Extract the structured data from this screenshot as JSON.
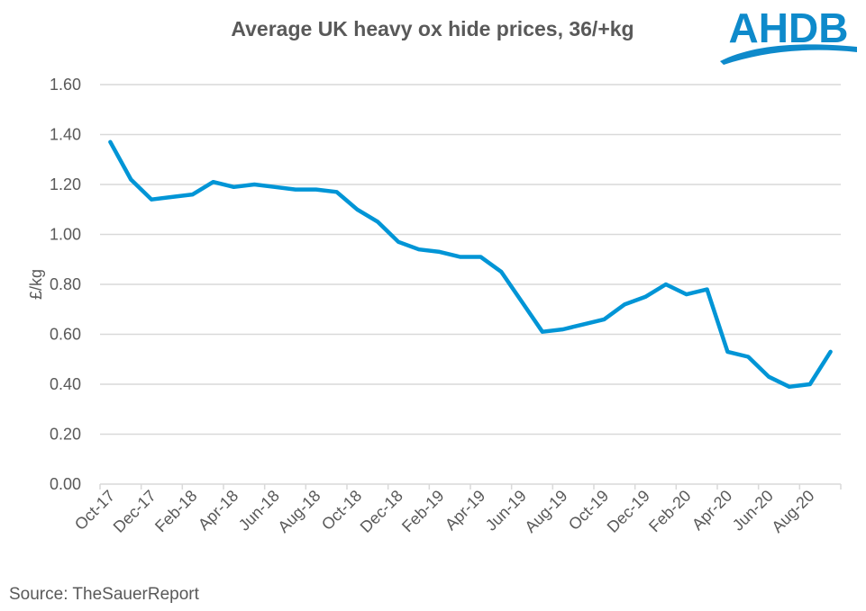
{
  "chart_data": {
    "type": "line",
    "title": "Average UK heavy ox hide prices, 36/+kg",
    "xlabel": "",
    "ylabel": "£/kg",
    "ylim": [
      0,
      1.6
    ],
    "yticks": [
      "0.00",
      "0.20",
      "0.40",
      "0.60",
      "0.80",
      "1.00",
      "1.20",
      "1.40",
      "1.60"
    ],
    "ytick_values": [
      0,
      0.2,
      0.4,
      0.6,
      0.8,
      1.0,
      1.2,
      1.4,
      1.6
    ],
    "grid": true,
    "legend": "none",
    "x": [
      "Oct-17",
      "Nov-17",
      "Dec-17",
      "Jan-18",
      "Feb-18",
      "Mar-18",
      "Apr-18",
      "May-18",
      "Jun-18",
      "Jul-18",
      "Aug-18",
      "Sep-18",
      "Oct-18",
      "Nov-18",
      "Dec-18",
      "Jan-19",
      "Feb-19",
      "Mar-19",
      "Apr-19",
      "May-19",
      "Jun-19",
      "Jul-19",
      "Aug-19",
      "Sep-19",
      "Oct-19",
      "Nov-19",
      "Dec-19",
      "Jan-20",
      "Feb-20",
      "Mar-20",
      "Apr-20",
      "May-20",
      "Jun-20",
      "Jul-20",
      "Aug-20",
      "Sep-20"
    ],
    "xtick_labels": [
      "Oct-17",
      "Dec-17",
      "Feb-18",
      "Apr-18",
      "Jun-18",
      "Aug-18",
      "Oct-18",
      "Dec-18",
      "Feb-19",
      "Apr-19",
      "Jun-19",
      "Aug-19",
      "Oct-19",
      "Dec-19",
      "Feb-20",
      "Apr-20",
      "Jun-20",
      "Aug-20"
    ],
    "series": [
      {
        "name": "Heavy ox hide price",
        "color": "#0095D6",
        "values": [
          1.37,
          1.22,
          1.14,
          1.15,
          1.16,
          1.21,
          1.19,
          1.2,
          1.19,
          1.18,
          1.18,
          1.17,
          1.1,
          1.05,
          0.97,
          0.94,
          0.93,
          0.91,
          0.91,
          0.85,
          0.73,
          0.61,
          0.62,
          0.64,
          0.66,
          0.72,
          0.75,
          0.8,
          0.76,
          0.78,
          0.53,
          0.51,
          0.43,
          0.39,
          0.4,
          0.53
        ]
      }
    ]
  },
  "logo": {
    "text": "AHDB",
    "color": "#0E8ACB"
  },
  "source": "Source: TheSauerReport",
  "colors": {
    "grid": "#D9D9D9",
    "text": "#595959",
    "line": "#0095D6"
  }
}
